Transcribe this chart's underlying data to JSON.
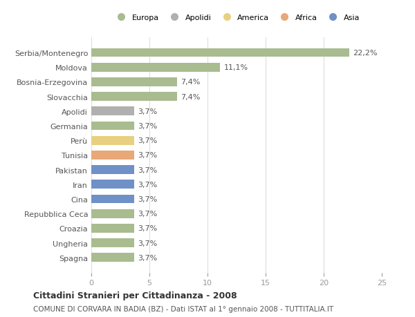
{
  "title1": "Cittadini Stranieri per Cittadinanza - 2008",
  "title2": "COMUNE DI CORVARA IN BADIA (BZ) - Dati ISTAT al 1° gennaio 2008 - TUTTITALIA.IT",
  "categories": [
    "Serbia/Montenegro",
    "Moldova",
    "Bosnia-Erzegovina",
    "Slovacchia",
    "Apolidi",
    "Germania",
    "Perù",
    "Tunisia",
    "Pakistan",
    "Iran",
    "Cina",
    "Repubblica Ceca",
    "Croazia",
    "Ungheria",
    "Spagna"
  ],
  "values": [
    22.2,
    11.1,
    7.4,
    7.4,
    3.7,
    3.7,
    3.7,
    3.7,
    3.7,
    3.7,
    3.7,
    3.7,
    3.7,
    3.7,
    3.7
  ],
  "labels": [
    "22,2%",
    "11,1%",
    "7,4%",
    "7,4%",
    "3,7%",
    "3,7%",
    "3,7%",
    "3,7%",
    "3,7%",
    "3,7%",
    "3,7%",
    "3,7%",
    "3,7%",
    "3,7%",
    "3,7%"
  ],
  "colors": [
    "#a8bc8f",
    "#a8bc8f",
    "#a8bc8f",
    "#a8bc8f",
    "#b0b0b0",
    "#a8bc8f",
    "#e8d080",
    "#e8a878",
    "#7090c8",
    "#7090c8",
    "#7090c8",
    "#a8bc8f",
    "#a8bc8f",
    "#a8bc8f",
    "#a8bc8f"
  ],
  "legend_labels": [
    "Europa",
    "Apolidi",
    "America",
    "Africa",
    "Asia"
  ],
  "legend_colors": [
    "#a8bc8f",
    "#b0b0b0",
    "#e8d080",
    "#e8a878",
    "#7090c8"
  ],
  "xlim": [
    0,
    25
  ],
  "xticks": [
    0,
    5,
    10,
    15,
    20,
    25
  ],
  "background_color": "#ffffff",
  "grid_color": "#dddddd"
}
